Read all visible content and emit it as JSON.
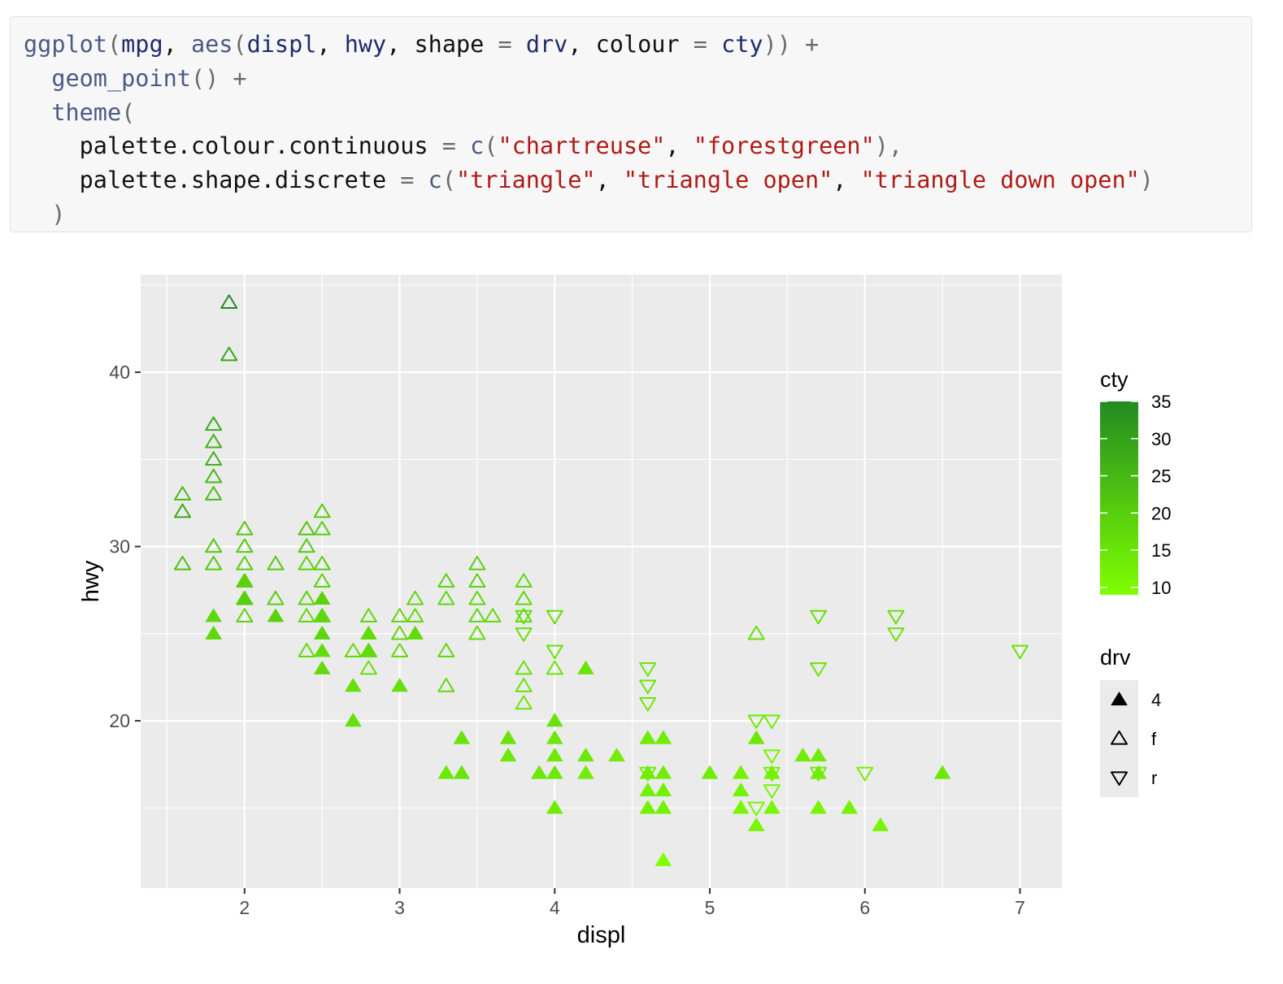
{
  "code": {
    "lines": [
      [
        {
          "t": "ggplot",
          "c": "fn"
        },
        {
          "t": "(",
          "c": "op"
        },
        {
          "t": "mpg",
          "c": "id"
        },
        {
          "t": ", ",
          "c": "plain"
        },
        {
          "t": "aes",
          "c": "fn"
        },
        {
          "t": "(",
          "c": "op"
        },
        {
          "t": "displ",
          "c": "id"
        },
        {
          "t": ", ",
          "c": "plain"
        },
        {
          "t": "hwy",
          "c": "id"
        },
        {
          "t": ", shape ",
          "c": "plain"
        },
        {
          "t": "=",
          "c": "op"
        },
        {
          "t": " ",
          "c": "plain"
        },
        {
          "t": "drv",
          "c": "id"
        },
        {
          "t": ", colour ",
          "c": "plain"
        },
        {
          "t": "=",
          "c": "op"
        },
        {
          "t": " ",
          "c": "plain"
        },
        {
          "t": "cty",
          "c": "id"
        },
        {
          "t": ")) +",
          "c": "op"
        }
      ],
      [
        {
          "t": "  ",
          "c": "plain"
        },
        {
          "t": "geom_point",
          "c": "fn"
        },
        {
          "t": "() +",
          "c": "op"
        }
      ],
      [
        {
          "t": "  ",
          "c": "plain"
        },
        {
          "t": "theme",
          "c": "fn"
        },
        {
          "t": "(",
          "c": "op"
        }
      ],
      [
        {
          "t": "    palette.colour.continuous ",
          "c": "plain"
        },
        {
          "t": "=",
          "c": "op"
        },
        {
          "t": " ",
          "c": "plain"
        },
        {
          "t": "c",
          "c": "fn"
        },
        {
          "t": "(",
          "c": "op"
        },
        {
          "t": "\"chartreuse\"",
          "c": "str"
        },
        {
          "t": ", ",
          "c": "plain"
        },
        {
          "t": "\"forestgreen\"",
          "c": "str"
        },
        {
          "t": "),",
          "c": "op"
        }
      ],
      [
        {
          "t": "    palette.shape.discrete ",
          "c": "plain"
        },
        {
          "t": "=",
          "c": "op"
        },
        {
          "t": " ",
          "c": "plain"
        },
        {
          "t": "c",
          "c": "fn"
        },
        {
          "t": "(",
          "c": "op"
        },
        {
          "t": "\"triangle\"",
          "c": "str"
        },
        {
          "t": ", ",
          "c": "plain"
        },
        {
          "t": "\"triangle open\"",
          "c": "str"
        },
        {
          "t": ", ",
          "c": "plain"
        },
        {
          "t": "\"triangle down open\"",
          "c": "str"
        },
        {
          "t": ")",
          "c": "op"
        }
      ],
      [
        {
          "t": "  )",
          "c": "op"
        }
      ]
    ]
  },
  "colors": {
    "panel_bg": "#ebebeb",
    "grid_major": "#ffffff",
    "low": "#7fff00",
    "high": "#228b22",
    "axis_text": "#4d4d4d",
    "title_text": "#000000"
  },
  "chart_data": {
    "type": "scatter",
    "xlabel": "displ",
    "ylabel": "hwy",
    "xlim": [
      1.33,
      7.27
    ],
    "ylim": [
      10.4,
      45.6
    ],
    "x_ticks": [
      2,
      3,
      4,
      5,
      6,
      7
    ],
    "x_tick_labels": [
      "2",
      "3",
      "4",
      "5",
      "6",
      "7"
    ],
    "y_ticks": [
      20,
      30,
      40
    ],
    "y_tick_labels": [
      "20",
      "30",
      "40"
    ],
    "grid": true,
    "color_legend": {
      "title": "cty",
      "range": [
        9,
        35
      ],
      "ticks": [
        10,
        15,
        20,
        25,
        30,
        35
      ],
      "tick_labels": [
        "10",
        "15",
        "20",
        "25",
        "30",
        "35"
      ],
      "palette": [
        "chartreuse",
        "forestgreen"
      ]
    },
    "shape_legend": {
      "title": "drv",
      "entries": [
        {
          "label": "4",
          "shape": "triangle"
        },
        {
          "label": "f",
          "shape": "triangle open"
        },
        {
          "label": "r",
          "shape": "triangle down open"
        }
      ]
    },
    "legend_position": "right",
    "points": [
      {
        "x": 1.9,
        "y": 44,
        "drv": "f",
        "cty": 35
      },
      {
        "x": 1.9,
        "y": 41,
        "drv": "f",
        "cty": 29
      },
      {
        "x": 1.8,
        "y": 37,
        "drv": "f",
        "cty": 28
      },
      {
        "x": 1.8,
        "y": 36,
        "drv": "f",
        "cty": 26
      },
      {
        "x": 1.8,
        "y": 35,
        "drv": "f",
        "cty": 26
      },
      {
        "x": 1.8,
        "y": 34,
        "drv": "f",
        "cty": 25
      },
      {
        "x": 1.8,
        "y": 33,
        "drv": "f",
        "cty": 24
      },
      {
        "x": 1.6,
        "y": 33,
        "drv": "f",
        "cty": 24
      },
      {
        "x": 1.6,
        "y": 32,
        "drv": "f",
        "cty": 28
      },
      {
        "x": 1.6,
        "y": 29,
        "drv": "f",
        "cty": 23
      },
      {
        "x": 1.8,
        "y": 30,
        "drv": "f",
        "cty": 21
      },
      {
        "x": 1.8,
        "y": 29,
        "drv": "f",
        "cty": 21
      },
      {
        "x": 1.8,
        "y": 26,
        "drv": "4",
        "cty": 18
      },
      {
        "x": 1.8,
        "y": 25,
        "drv": "4",
        "cty": 18
      },
      {
        "x": 2.0,
        "y": 31,
        "drv": "f",
        "cty": 21
      },
      {
        "x": 2.0,
        "y": 30,
        "drv": "f",
        "cty": 21
      },
      {
        "x": 2.0,
        "y": 29,
        "drv": "f",
        "cty": 20
      },
      {
        "x": 2.0,
        "y": 28,
        "drv": "f",
        "cty": 21
      },
      {
        "x": 2.0,
        "y": 28,
        "drv": "4",
        "cty": 19
      },
      {
        "x": 2.0,
        "y": 27,
        "drv": "f",
        "cty": 20
      },
      {
        "x": 2.0,
        "y": 27,
        "drv": "4",
        "cty": 20
      },
      {
        "x": 2.0,
        "y": 26,
        "drv": "f",
        "cty": 19
      },
      {
        "x": 2.2,
        "y": 29,
        "drv": "f",
        "cty": 21
      },
      {
        "x": 2.2,
        "y": 27,
        "drv": "f",
        "cty": 20
      },
      {
        "x": 2.2,
        "y": 26,
        "drv": "4",
        "cty": 19
      },
      {
        "x": 2.4,
        "y": 31,
        "drv": "f",
        "cty": 22
      },
      {
        "x": 2.4,
        "y": 30,
        "drv": "f",
        "cty": 21
      },
      {
        "x": 2.4,
        "y": 29,
        "drv": "f",
        "cty": 19
      },
      {
        "x": 2.4,
        "y": 27,
        "drv": "f",
        "cty": 19
      },
      {
        "x": 2.4,
        "y": 26,
        "drv": "f",
        "cty": 18
      },
      {
        "x": 2.4,
        "y": 24,
        "drv": "f",
        "cty": 17
      },
      {
        "x": 2.5,
        "y": 32,
        "drv": "f",
        "cty": 21
      },
      {
        "x": 2.5,
        "y": 31,
        "drv": "f",
        "cty": 20
      },
      {
        "x": 2.5,
        "y": 29,
        "drv": "f",
        "cty": 20
      },
      {
        "x": 2.5,
        "y": 28,
        "drv": "f",
        "cty": 19
      },
      {
        "x": 2.5,
        "y": 27,
        "drv": "4",
        "cty": 19
      },
      {
        "x": 2.5,
        "y": 26,
        "drv": "f",
        "cty": 19
      },
      {
        "x": 2.5,
        "y": 26,
        "drv": "4",
        "cty": 18
      },
      {
        "x": 2.5,
        "y": 25,
        "drv": "4",
        "cty": 18
      },
      {
        "x": 2.5,
        "y": 24,
        "drv": "4",
        "cty": 17
      },
      {
        "x": 2.5,
        "y": 23,
        "drv": "4",
        "cty": 17
      },
      {
        "x": 2.7,
        "y": 24,
        "drv": "f",
        "cty": 17
      },
      {
        "x": 2.7,
        "y": 22,
        "drv": "4",
        "cty": 16
      },
      {
        "x": 2.7,
        "y": 20,
        "drv": "4",
        "cty": 16
      },
      {
        "x": 2.8,
        "y": 26,
        "drv": "f",
        "cty": 18
      },
      {
        "x": 2.8,
        "y": 25,
        "drv": "4",
        "cty": 17
      },
      {
        "x": 2.8,
        "y": 24,
        "drv": "f",
        "cty": 17
      },
      {
        "x": 2.8,
        "y": 24,
        "drv": "4",
        "cty": 17
      },
      {
        "x": 2.8,
        "y": 23,
        "drv": "f",
        "cty": 16
      },
      {
        "x": 3.0,
        "y": 26,
        "drv": "f",
        "cty": 18
      },
      {
        "x": 3.0,
        "y": 25,
        "drv": "f",
        "cty": 18
      },
      {
        "x": 3.0,
        "y": 24,
        "drv": "f",
        "cty": 17
      },
      {
        "x": 3.0,
        "y": 22,
        "drv": "4",
        "cty": 16
      },
      {
        "x": 3.1,
        "y": 27,
        "drv": "f",
        "cty": 18
      },
      {
        "x": 3.1,
        "y": 26,
        "drv": "f",
        "cty": 18
      },
      {
        "x": 3.1,
        "y": 25,
        "drv": "4",
        "cty": 17
      },
      {
        "x": 3.3,
        "y": 28,
        "drv": "f",
        "cty": 19
      },
      {
        "x": 3.3,
        "y": 27,
        "drv": "f",
        "cty": 18
      },
      {
        "x": 3.3,
        "y": 24,
        "drv": "f",
        "cty": 17
      },
      {
        "x": 3.3,
        "y": 22,
        "drv": "f",
        "cty": 17
      },
      {
        "x": 3.3,
        "y": 17,
        "drv": "4",
        "cty": 14
      },
      {
        "x": 3.4,
        "y": 19,
        "drv": "4",
        "cty": 15
      },
      {
        "x": 3.4,
        "y": 17,
        "drv": "4",
        "cty": 15
      },
      {
        "x": 3.5,
        "y": 29,
        "drv": "f",
        "cty": 19
      },
      {
        "x": 3.5,
        "y": 28,
        "drv": "f",
        "cty": 19
      },
      {
        "x": 3.5,
        "y": 27,
        "drv": "f",
        "cty": 18
      },
      {
        "x": 3.5,
        "y": 26,
        "drv": "f",
        "cty": 18
      },
      {
        "x": 3.5,
        "y": 25,
        "drv": "f",
        "cty": 17
      },
      {
        "x": 3.6,
        "y": 26,
        "drv": "f",
        "cty": 17
      },
      {
        "x": 3.7,
        "y": 19,
        "drv": "4",
        "cty": 15
      },
      {
        "x": 3.7,
        "y": 18,
        "drv": "4",
        "cty": 14
      },
      {
        "x": 3.8,
        "y": 28,
        "drv": "f",
        "cty": 18
      },
      {
        "x": 3.8,
        "y": 27,
        "drv": "f",
        "cty": 18
      },
      {
        "x": 3.8,
        "y": 26,
        "drv": "f",
        "cty": 17
      },
      {
        "x": 3.8,
        "y": 26,
        "drv": "r",
        "cty": 16
      },
      {
        "x": 3.8,
        "y": 25,
        "drv": "r",
        "cty": 16
      },
      {
        "x": 3.8,
        "y": 23,
        "drv": "f",
        "cty": 16
      },
      {
        "x": 3.8,
        "y": 22,
        "drv": "f",
        "cty": 15
      },
      {
        "x": 3.8,
        "y": 21,
        "drv": "f",
        "cty": 15
      },
      {
        "x": 3.9,
        "y": 17,
        "drv": "4",
        "cty": 14
      },
      {
        "x": 4.0,
        "y": 26,
        "drv": "r",
        "cty": 16
      },
      {
        "x": 4.0,
        "y": 24,
        "drv": "r",
        "cty": 15
      },
      {
        "x": 4.0,
        "y": 23,
        "drv": "f",
        "cty": 15
      },
      {
        "x": 4.0,
        "y": 20,
        "drv": "4",
        "cty": 15
      },
      {
        "x": 4.0,
        "y": 19,
        "drv": "4",
        "cty": 14
      },
      {
        "x": 4.0,
        "y": 18,
        "drv": "4",
        "cty": 14
      },
      {
        "x": 4.0,
        "y": 17,
        "drv": "4",
        "cty": 14
      },
      {
        "x": 4.0,
        "y": 15,
        "drv": "4",
        "cty": 13
      },
      {
        "x": 4.2,
        "y": 23,
        "drv": "4",
        "cty": 15
      },
      {
        "x": 4.2,
        "y": 18,
        "drv": "4",
        "cty": 14
      },
      {
        "x": 4.2,
        "y": 17,
        "drv": "4",
        "cty": 13
      },
      {
        "x": 4.4,
        "y": 18,
        "drv": "4",
        "cty": 13
      },
      {
        "x": 4.6,
        "y": 23,
        "drv": "r",
        "cty": 15
      },
      {
        "x": 4.6,
        "y": 22,
        "drv": "r",
        "cty": 15
      },
      {
        "x": 4.6,
        "y": 21,
        "drv": "r",
        "cty": 14
      },
      {
        "x": 4.6,
        "y": 19,
        "drv": "4",
        "cty": 13
      },
      {
        "x": 4.6,
        "y": 17,
        "drv": "4",
        "cty": 13
      },
      {
        "x": 4.6,
        "y": 17,
        "drv": "r",
        "cty": 13
      },
      {
        "x": 4.6,
        "y": 16,
        "drv": "4",
        "cty": 12
      },
      {
        "x": 4.6,
        "y": 15,
        "drv": "4",
        "cty": 12
      },
      {
        "x": 4.7,
        "y": 19,
        "drv": "4",
        "cty": 13
      },
      {
        "x": 4.7,
        "y": 17,
        "drv": "4",
        "cty": 13
      },
      {
        "x": 4.7,
        "y": 16,
        "drv": "4",
        "cty": 12
      },
      {
        "x": 4.7,
        "y": 15,
        "drv": "4",
        "cty": 12
      },
      {
        "x": 4.7,
        "y": 12,
        "drv": "4",
        "cty": 9
      },
      {
        "x": 5.0,
        "y": 17,
        "drv": "4",
        "cty": 13
      },
      {
        "x": 5.2,
        "y": 17,
        "drv": "4",
        "cty": 12
      },
      {
        "x": 5.2,
        "y": 16,
        "drv": "4",
        "cty": 12
      },
      {
        "x": 5.2,
        "y": 15,
        "drv": "4",
        "cty": 11
      },
      {
        "x": 5.3,
        "y": 25,
        "drv": "f",
        "cty": 16
      },
      {
        "x": 5.3,
        "y": 20,
        "drv": "r",
        "cty": 14
      },
      {
        "x": 5.3,
        "y": 19,
        "drv": "4",
        "cty": 14
      },
      {
        "x": 5.3,
        "y": 15,
        "drv": "r",
        "cty": 11
      },
      {
        "x": 5.3,
        "y": 14,
        "drv": "4",
        "cty": 11
      },
      {
        "x": 5.4,
        "y": 20,
        "drv": "r",
        "cty": 13
      },
      {
        "x": 5.4,
        "y": 18,
        "drv": "r",
        "cty": 12
      },
      {
        "x": 5.4,
        "y": 17,
        "drv": "4",
        "cty": 12
      },
      {
        "x": 5.4,
        "y": 17,
        "drv": "r",
        "cty": 12
      },
      {
        "x": 5.4,
        "y": 16,
        "drv": "r",
        "cty": 11
      },
      {
        "x": 5.4,
        "y": 15,
        "drv": "4",
        "cty": 11
      },
      {
        "x": 5.6,
        "y": 18,
        "drv": "4",
        "cty": 13
      },
      {
        "x": 5.7,
        "y": 26,
        "drv": "r",
        "cty": 16
      },
      {
        "x": 5.7,
        "y": 23,
        "drv": "r",
        "cty": 15
      },
      {
        "x": 5.7,
        "y": 18,
        "drv": "4",
        "cty": 13
      },
      {
        "x": 5.7,
        "y": 17,
        "drv": "4",
        "cty": 13
      },
      {
        "x": 5.7,
        "y": 17,
        "drv": "r",
        "cty": 13
      },
      {
        "x": 5.7,
        "y": 15,
        "drv": "4",
        "cty": 11
      },
      {
        "x": 5.9,
        "y": 15,
        "drv": "4",
        "cty": 12
      },
      {
        "x": 6.0,
        "y": 17,
        "drv": "r",
        "cty": 12
      },
      {
        "x": 6.1,
        "y": 14,
        "drv": "4",
        "cty": 11
      },
      {
        "x": 6.2,
        "y": 26,
        "drv": "r",
        "cty": 16
      },
      {
        "x": 6.2,
        "y": 25,
        "drv": "r",
        "cty": 15
      },
      {
        "x": 6.5,
        "y": 17,
        "drv": "4",
        "cty": 14
      },
      {
        "x": 7.0,
        "y": 24,
        "drv": "r",
        "cty": 15
      }
    ]
  }
}
